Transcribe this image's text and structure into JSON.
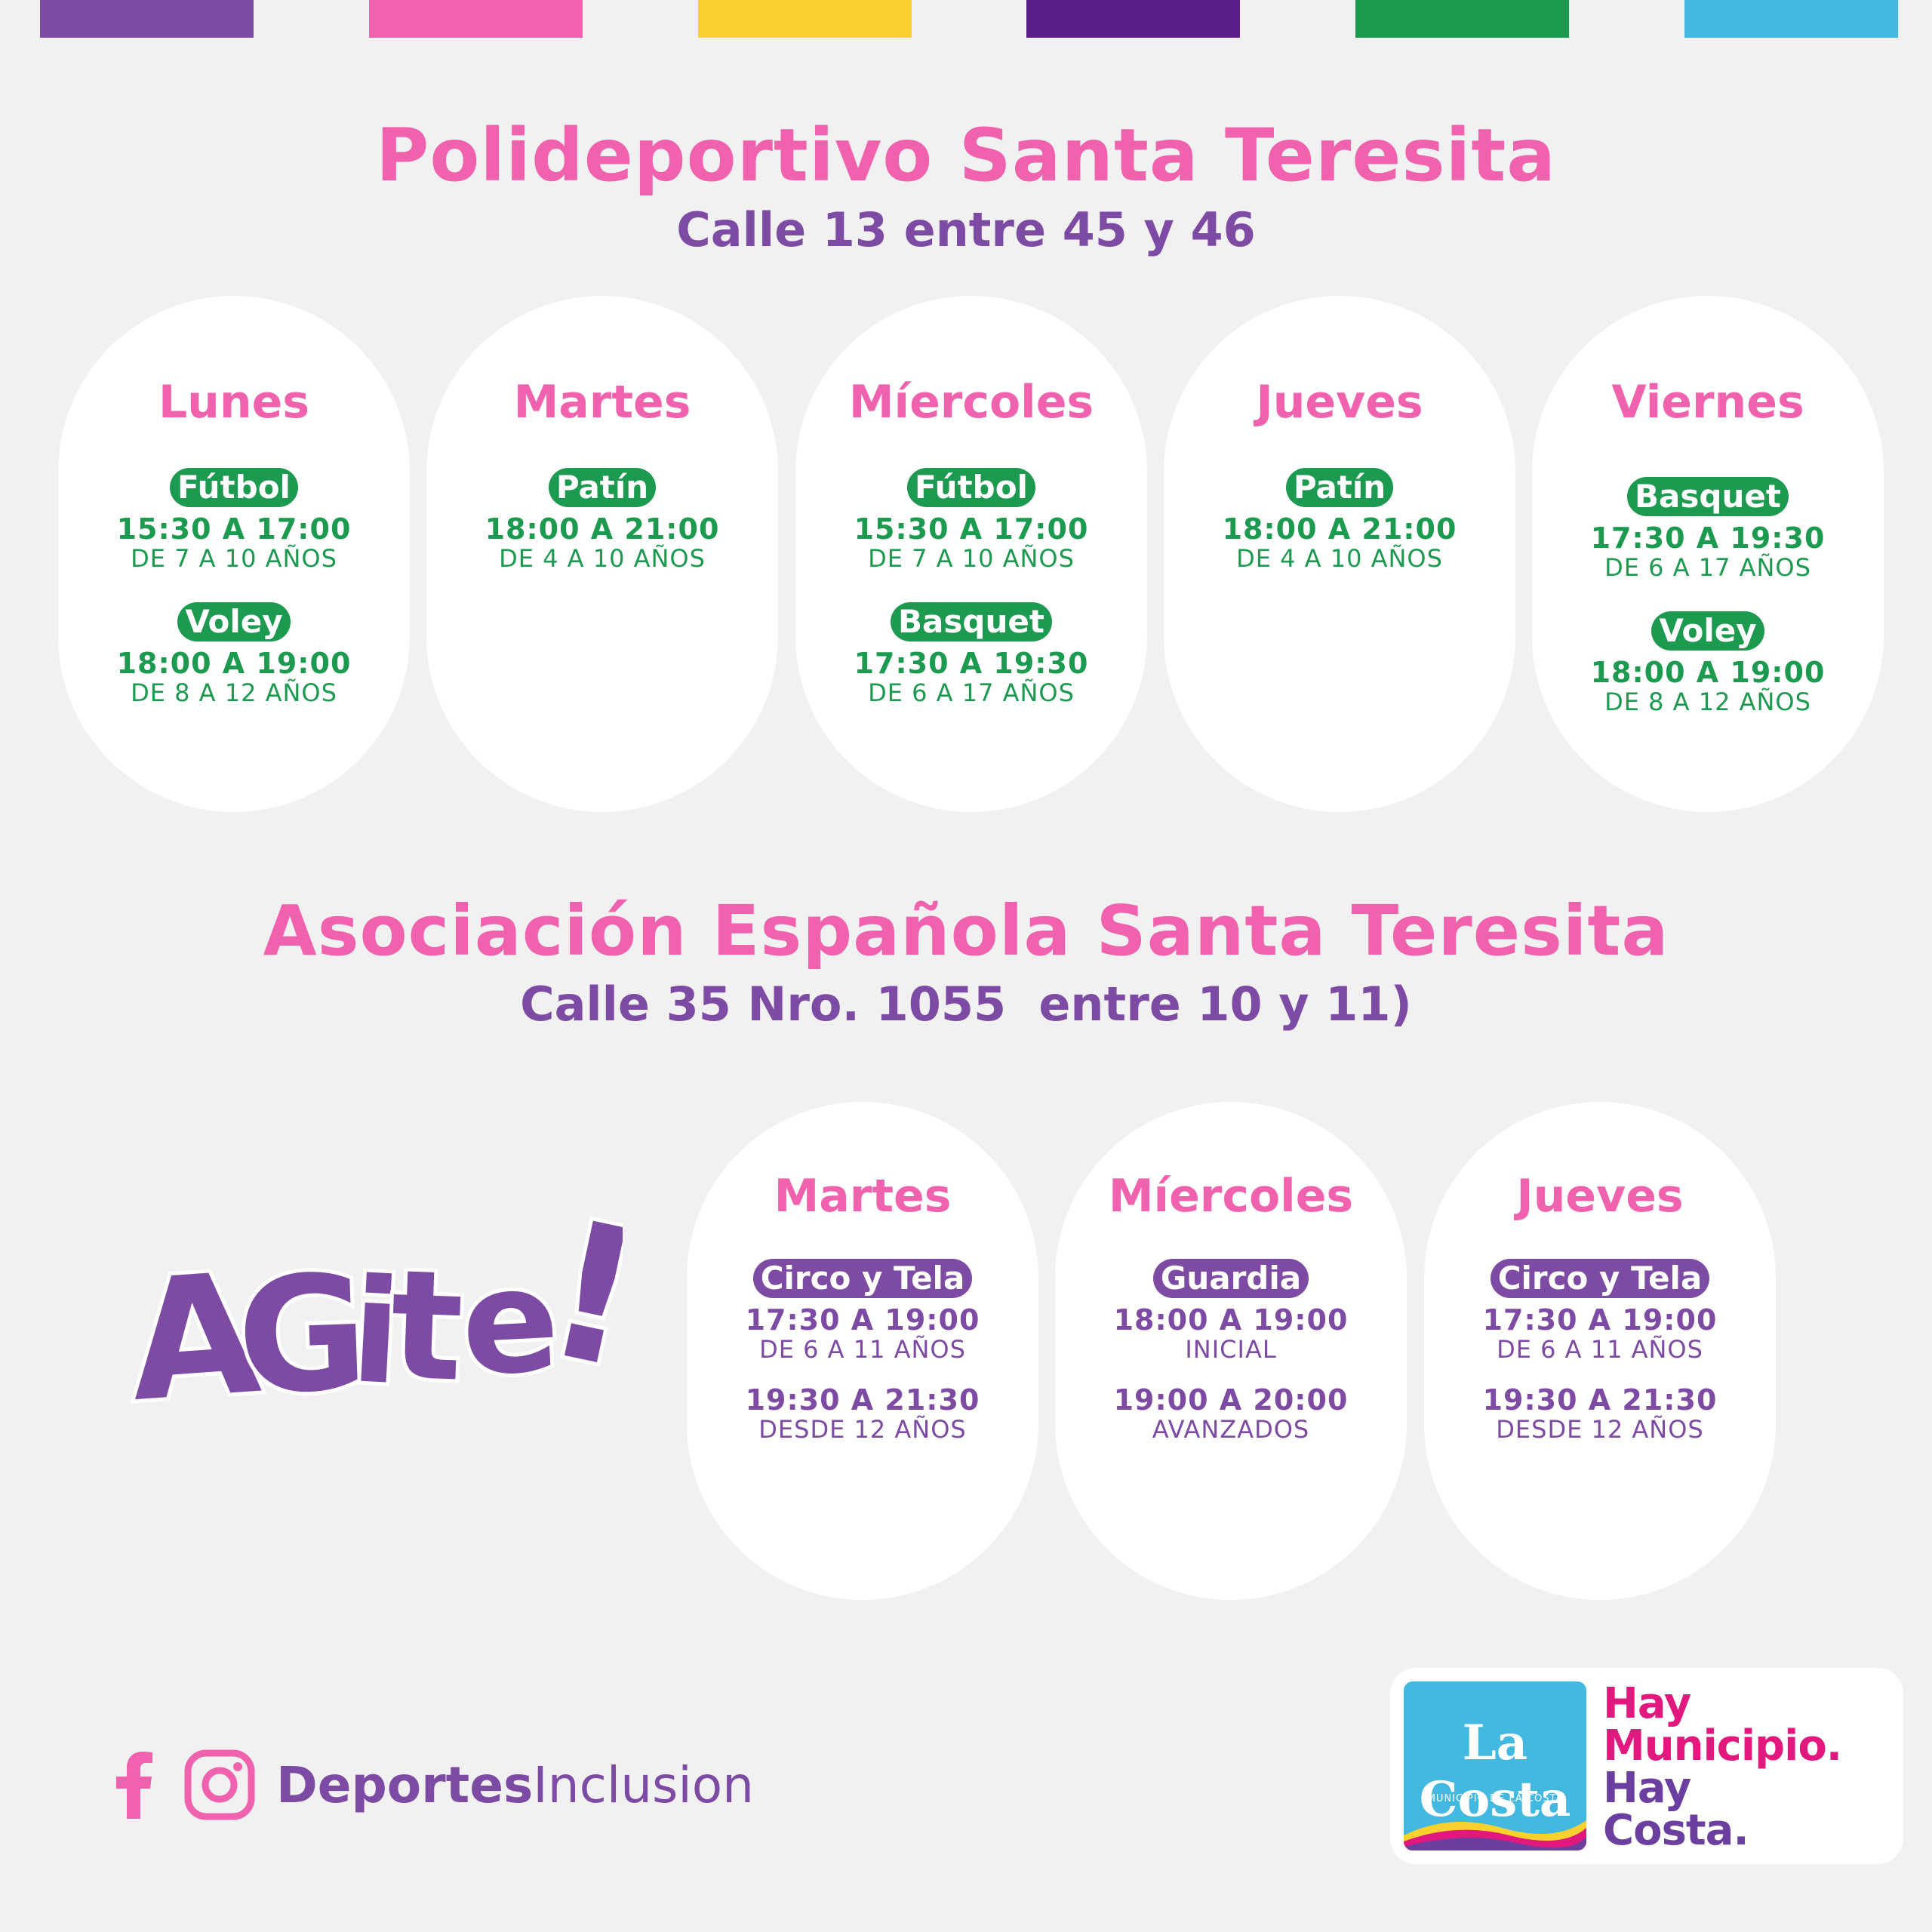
{
  "colors": {
    "pink": "#f062ad",
    "purple": "#7d4ba3",
    "green": "#1c9a50",
    "stripes": [
      "#7d4ba3",
      "#f062ad",
      "#f8d12e",
      "#5b1f87",
      "#1c9a50",
      "#43b8e0"
    ]
  },
  "venue1": {
    "title": "Polideportivo Santa Teresita",
    "address": "Calle 13 entre 45 y 46",
    "days": [
      {
        "day": "Lunes",
        "activities": [
          {
            "sport": "Fútbol",
            "time": "15:30 A 17:00",
            "age": "DE 7 A 10 AÑOS"
          },
          {
            "sport": "Voley",
            "time": "18:00 A 19:00",
            "age": "DE 8 A 12 AÑOS"
          }
        ]
      },
      {
        "day": "Martes",
        "activities": [
          {
            "sport": "Patín",
            "time": "18:00 A 21:00",
            "age": "DE 4 A 10 AÑOS"
          }
        ]
      },
      {
        "day": "Míercoles",
        "activities": [
          {
            "sport": "Fútbol",
            "time": "15:30 A 17:00",
            "age": "DE 7 A 10 AÑOS"
          },
          {
            "sport": "Basquet",
            "time": "17:30 A 19:30",
            "age": "DE 6 A 17 AÑOS"
          }
        ]
      },
      {
        "day": "Jueves",
        "activities": [
          {
            "sport": "Patín",
            "time": "18:00 A 21:00",
            "age": "DE 4 A 10 AÑOS"
          }
        ]
      },
      {
        "day": "Viernes",
        "activities": [
          {
            "sport": "Basquet",
            "time": "17:30 A 19:30",
            "age": "DE 6 A 17 AÑOS"
          },
          {
            "sport": "Voley",
            "time": "18:00 A 19:00",
            "age": "DE 8 A 12 AÑOS"
          }
        ]
      }
    ]
  },
  "venue2": {
    "title": "Asociación Española Santa Teresita",
    "address": "Calle 35 Nro. 1055  entre 10 y 11)",
    "days": [
      {
        "day": "Martes",
        "activity": "Circo y Tela",
        "slots": [
          {
            "time": "17:30 A 19:00",
            "label": "DE 6 A 11 AÑOS"
          },
          {
            "time": "19:30 A 21:30",
            "label": "DESDE 12 AÑOS"
          }
        ]
      },
      {
        "day": "Míercoles",
        "activity": "Guardia",
        "slots": [
          {
            "time": "18:00 A 19:00",
            "label": "INICIAL"
          },
          {
            "time": "19:00 A 20:00",
            "label": "AVANZADOS"
          }
        ]
      },
      {
        "day": "Jueves",
        "activity": "Circo y Tela",
        "slots": [
          {
            "time": "17:30 A 19:00",
            "label": "DE 6 A 11 AÑOS"
          },
          {
            "time": "19:30 A 21:30",
            "label": "DESDE 12 AÑOS"
          }
        ]
      }
    ]
  },
  "brand": {
    "agite": "AGite!",
    "social_handle_bold": "Deportes",
    "social_handle_rest": "Inclusion",
    "logo_name": "La Costa",
    "logo_sub": "MUNICIPIO DE LA COSTA",
    "slogan": [
      "Hay",
      "Municipio.",
      "Hay",
      "Costa."
    ]
  },
  "icons": {
    "facebook": "facebook-icon",
    "instagram": "instagram-icon"
  }
}
